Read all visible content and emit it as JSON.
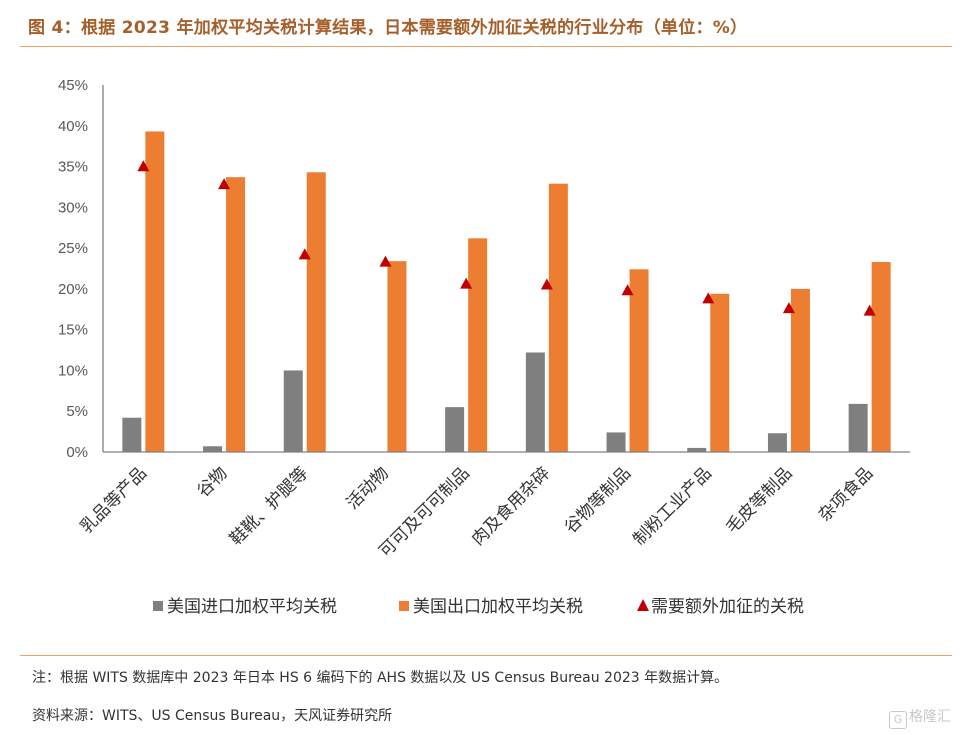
{
  "header": {
    "title": "图 4：根据 2023 年加权平均关税计算结果，日本需要额外加征关税的行业分布（单位：%）"
  },
  "footer": {
    "note": "注：根据 WITS 数据库中 2023 年日本 HS 6 编码下的 AHS 数据以及 US Census Bureau 2023 年数据计算。",
    "source": "资料来源：WITS、US Census Bureau，天风证券研究所",
    "watermark": "格隆汇",
    "watermark_mark": "G"
  },
  "chart_data": {
    "type": "bar",
    "categories": [
      "乳品等产品",
      "谷物",
      "鞋靴、护腿等",
      "活动物",
      "可可及可可制品",
      "肉及食用杂碎",
      "谷物等制品",
      "制粉工业产品",
      "毛皮等制品",
      "杂项食品"
    ],
    "series": [
      {
        "name": "美国进口加权平均关税",
        "kind": "bar",
        "color": "#7f7f7f",
        "values": [
          4.2,
          0.7,
          10.0,
          0.0,
          5.5,
          12.2,
          2.4,
          0.5,
          2.3,
          5.9
        ]
      },
      {
        "name": "美国出口加权平均关税",
        "kind": "bar",
        "color": "#ed7d31",
        "values": [
          39.3,
          33.7,
          34.3,
          23.4,
          26.2,
          32.9,
          22.4,
          19.4,
          20.0,
          23.3
        ]
      },
      {
        "name": "需要额外加征的关税",
        "kind": "marker",
        "color": "#c00000",
        "values": [
          35.1,
          32.9,
          24.3,
          23.4,
          20.7,
          20.6,
          19.9,
          18.9,
          17.7,
          17.4
        ]
      }
    ],
    "yticks": [
      "0%",
      "5%",
      "10%",
      "15%",
      "20%",
      "25%",
      "30%",
      "35%",
      "40%",
      "45%"
    ],
    "ylim": [
      0,
      45
    ],
    "ystep": 5,
    "grid": false,
    "legend": "bottom"
  }
}
